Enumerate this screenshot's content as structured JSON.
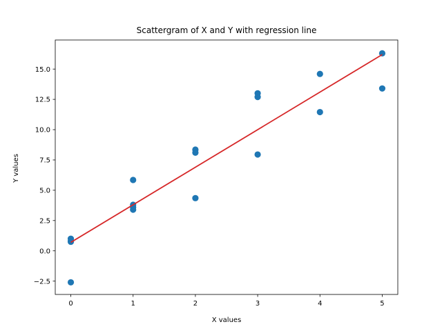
{
  "chart_data": {
    "type": "scatter",
    "title": "Scattergram of X and Y with regression line",
    "xlabel": "X values",
    "ylabel": "Y values",
    "xlim": [
      -0.25,
      5.25
    ],
    "ylim": [
      -3.6,
      17.4
    ],
    "xticks": [
      0,
      1,
      2,
      3,
      4,
      5
    ],
    "xtick_labels": [
      "0",
      "1",
      "2",
      "3",
      "4",
      "5"
    ],
    "yticks": [
      -2.5,
      0.0,
      2.5,
      5.0,
      7.5,
      10.0,
      12.5,
      15.0
    ],
    "ytick_labels": [
      "−2.5",
      "0.0",
      "2.5",
      "5.0",
      "7.5",
      "10.0",
      "12.5",
      "15.0"
    ],
    "grid": false,
    "point_color": "#1f77b4",
    "line_color": "#d62728",
    "points": [
      {
        "x": 0,
        "y": 1.0
      },
      {
        "x": 0,
        "y": 0.8
      },
      {
        "x": 0,
        "y": 0.75
      },
      {
        "x": 0,
        "y": -2.6
      },
      {
        "x": 1,
        "y": 5.85
      },
      {
        "x": 1,
        "y": 3.8
      },
      {
        "x": 1,
        "y": 3.6
      },
      {
        "x": 1,
        "y": 3.4
      },
      {
        "x": 2,
        "y": 8.35
      },
      {
        "x": 2,
        "y": 8.1
      },
      {
        "x": 2,
        "y": 4.35
      },
      {
        "x": 3,
        "y": 13.0
      },
      {
        "x": 3,
        "y": 12.7
      },
      {
        "x": 3,
        "y": 7.95
      },
      {
        "x": 4,
        "y": 14.6
      },
      {
        "x": 4,
        "y": 11.45
      },
      {
        "x": 5,
        "y": 16.3
      },
      {
        "x": 5,
        "y": 13.4
      }
    ],
    "regression_line": {
      "x": [
        0,
        5
      ],
      "y": [
        0.7,
        16.2
      ]
    }
  }
}
